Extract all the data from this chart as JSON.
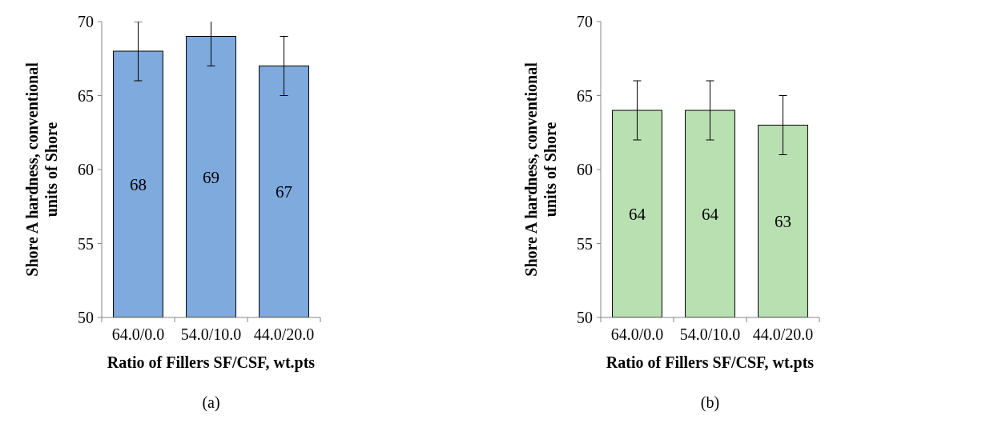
{
  "chart_data": [
    {
      "type": "bar",
      "categories": [
        "64.0/0.0",
        "54.0/10.0",
        "44.0/20.0"
      ],
      "values": [
        68,
        69,
        67
      ],
      "errors": [
        2,
        2,
        2
      ],
      "color": "#7eaadd",
      "ylim": [
        50,
        70
      ],
      "yticks": [
        50,
        55,
        60,
        65,
        70
      ],
      "xlabel": "Ratio of Fillers SF/CSF, wt.pts",
      "ylabel": "Shore A hardness, conventional units of Shore",
      "data_labels": true,
      "annotations": [
        "(a)"
      ]
    },
    {
      "type": "bar",
      "categories": [
        "64.0/0.0",
        "54.0/10.0",
        "44.0/20.0"
      ],
      "values": [
        64,
        64,
        63
      ],
      "errors": [
        2,
        2,
        2
      ],
      "color": "#b9e0b1",
      "ylim": [
        50,
        70
      ],
      "yticks": [
        50,
        55,
        60,
        65,
        70
      ],
      "xlabel": "Ratio of Fillers SF/CSF, wt.pts",
      "ylabel": "Shore A hardness, conventional units of Shore",
      "data_labels": true,
      "annotations": [
        "(b)"
      ]
    }
  ]
}
